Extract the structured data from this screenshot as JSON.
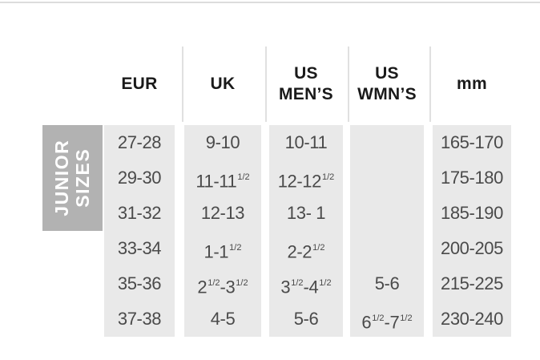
{
  "colors": {
    "group_block_bg": "#b2b2b2",
    "group_block_text": "#ffffff",
    "cell_bg": "#e9e9e9",
    "body_text": "#4a4a4a",
    "header_text": "#1a1a1a",
    "divider_line": "#e0e0e0",
    "top_rule": "#dcdcdc"
  },
  "chart_data": {
    "type": "table",
    "group_label": "JUNIOR\nSIZES",
    "columns": [
      "EUR",
      "UK",
      "US\nMEN’S",
      "US\nWMN’S",
      "mm"
    ],
    "rows": [
      [
        "27-28",
        "9-10",
        "10-11",
        "",
        "165-170"
      ],
      [
        "29-30",
        "11-11½",
        "12-12½",
        "",
        "175-180"
      ],
      [
        "31-32",
        "12-13",
        "13- 1",
        "",
        "185-190"
      ],
      [
        "33-34",
        "1-1½",
        "2-2½",
        "",
        "200-205"
      ],
      [
        "35-36",
        "2½-3½",
        "3½-4½",
        "5-6",
        "215-225"
      ],
      [
        "37-38",
        "4-5",
        "5-6",
        "6½-7½",
        "230-240"
      ]
    ]
  }
}
